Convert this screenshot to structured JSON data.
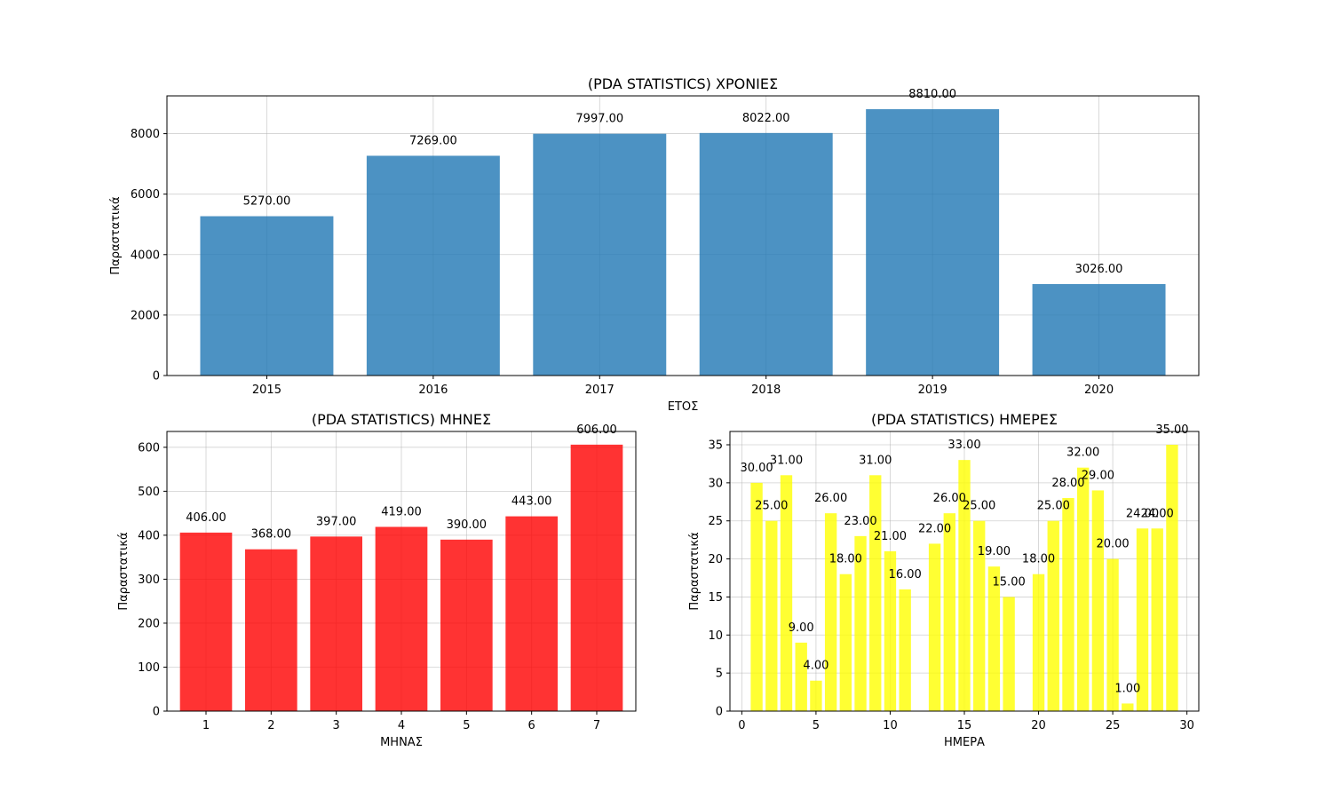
{
  "chart_data": [
    {
      "type": "bar",
      "title": "(PDA STATISTICS) ΧΡΟΝΙΕΣ",
      "xlabel": "ΕΤΟΣ",
      "ylabel": "Παραστατικά",
      "categories": [
        "2015",
        "2016",
        "2017",
        "2018",
        "2019",
        "2020"
      ],
      "values": [
        5270,
        7269,
        7997,
        8022,
        8810,
        3026
      ],
      "value_labels": [
        "5270.00",
        "7269.00",
        "7997.00",
        "8022.00",
        "8810.00",
        "3026.00"
      ],
      "ylim": [
        0,
        9250
      ],
      "yticks": [
        0,
        2000,
        4000,
        6000,
        8000
      ],
      "color": "#1f77b4",
      "grid": true
    },
    {
      "type": "bar",
      "title": "(PDA STATISTICS) ΜΗΝΕΣ",
      "xlabel": "ΜΗΝΑΣ",
      "ylabel": "Παραστατικά",
      "categories": [
        "1",
        "2",
        "3",
        "4",
        "5",
        "6",
        "7"
      ],
      "values": [
        406,
        368,
        397,
        419,
        390,
        443,
        606
      ],
      "value_labels": [
        "406.00",
        "368.00",
        "397.00",
        "419.00",
        "390.00",
        "443.00",
        "606.00"
      ],
      "ylim": [
        0,
        636
      ],
      "yticks": [
        0,
        100,
        200,
        300,
        400,
        500,
        600
      ],
      "color": "#ff0000",
      "grid": true
    },
    {
      "type": "bar",
      "title": "(PDA STATISTICS) ΗΜΕΡΕΣ",
      "xlabel": "ΗΜΕΡΑ",
      "ylabel": "Παραστατικά",
      "x": [
        1,
        2,
        3,
        4,
        5,
        6,
        7,
        8,
        9,
        10,
        11,
        13,
        14,
        15,
        16,
        17,
        18,
        20,
        21,
        22,
        23,
        24,
        25,
        26,
        27,
        28,
        29
      ],
      "values": [
        30,
        25,
        31,
        9,
        4,
        26,
        18,
        23,
        31,
        21,
        16,
        22,
        26,
        33,
        25,
        19,
        15,
        18,
        25,
        28,
        32,
        29,
        20,
        1,
        24,
        24,
        35
      ],
      "value_labels": [
        "30.00",
        "25.00",
        "31.00",
        "9.00",
        "4.00",
        "26.00",
        "18.00",
        "23.00",
        "31.00",
        "21.00",
        "16.00",
        "22.00",
        "26.00",
        "33.00",
        "25.00",
        "19.00",
        "15.00",
        "18.00",
        "25.00",
        "28.00",
        "32.00",
        "29.00",
        "20.00",
        "1.00",
        "24.00",
        "24.00",
        "35.00"
      ],
      "xlim": [
        -0.8,
        30.8
      ],
      "xticks": [
        0,
        5,
        10,
        15,
        20,
        25,
        30
      ],
      "ylim": [
        0,
        36.75
      ],
      "yticks": [
        0,
        5,
        10,
        15,
        20,
        25,
        30,
        35
      ],
      "color": "#ffff00",
      "grid": true
    }
  ]
}
